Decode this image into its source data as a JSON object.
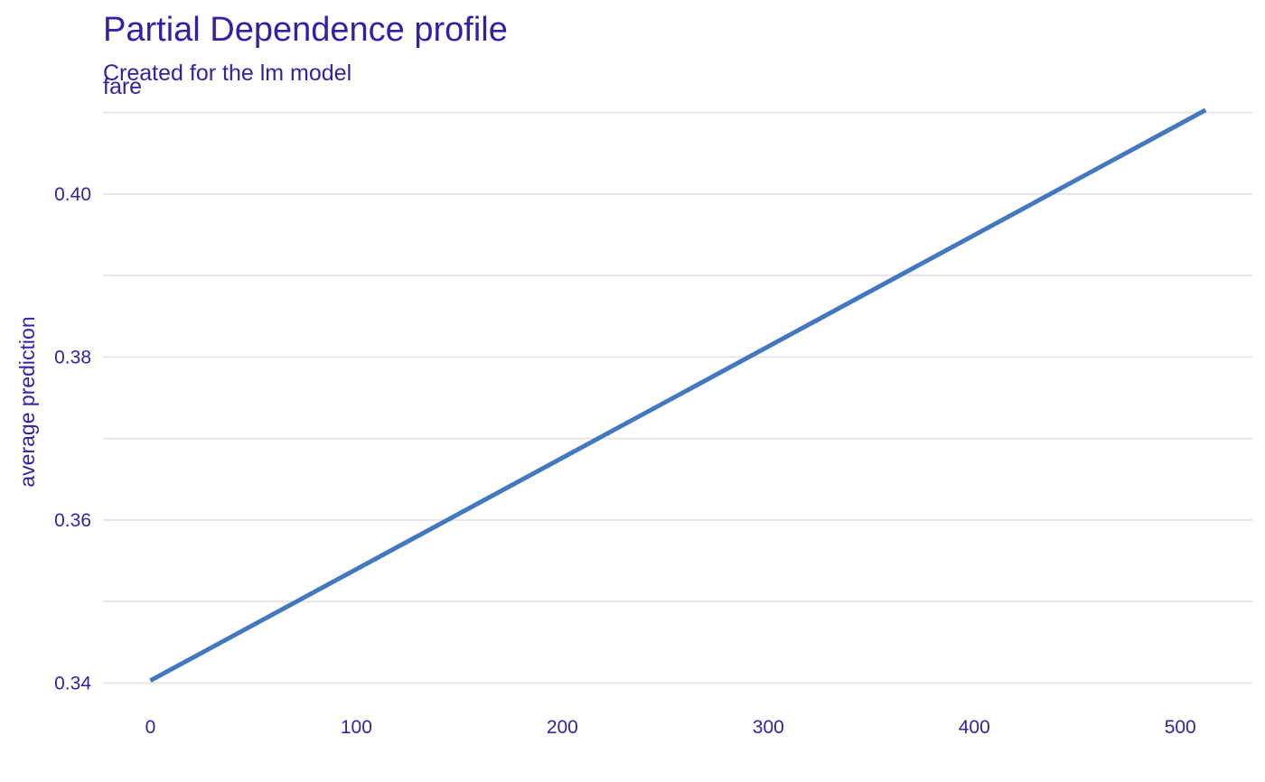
{
  "chart_data": {
    "type": "line",
    "title": "Partial Dependence profile",
    "subtitle": "Created for the lm model",
    "facet_label": "fare",
    "xlabel": "",
    "ylabel": "average prediction",
    "xlim": [
      -23,
      535
    ],
    "ylim": [
      0.3365,
      0.4125
    ],
    "x_ticks": [
      0,
      100,
      200,
      300,
      400,
      500
    ],
    "x_tick_labels": [
      "0",
      "100",
      "200",
      "300",
      "400",
      "500"
    ],
    "y_ticks": [
      0.34,
      0.36,
      0.38,
      0.4
    ],
    "y_tick_labels": [
      "0.34",
      "0.36",
      "0.38",
      "0.40"
    ],
    "y_minor_gridlines": [
      0.35,
      0.37,
      0.39,
      0.41
    ],
    "grid": true,
    "legend": "none",
    "series": [
      {
        "color": "#4378bf",
        "x": [
          0,
          512.3
        ],
        "y": [
          0.3403,
          0.4103
        ]
      }
    ]
  },
  "colors": {
    "text": "#371ea3",
    "grid": "#e5e5e5",
    "line": "#4378bf"
  }
}
